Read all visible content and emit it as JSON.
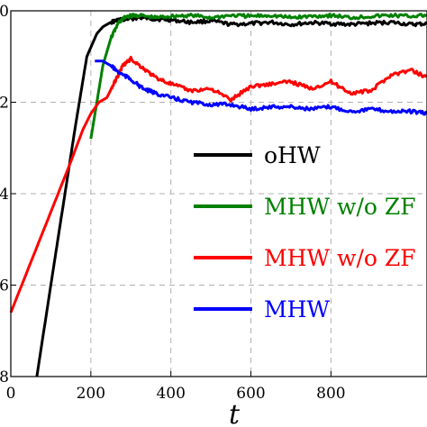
{
  "chart_data": {
    "type": "line",
    "title": "",
    "xlabel": "t",
    "ylabel": "",
    "xlim": [
      0,
      1040
    ],
    "ylim": [
      -8,
      0
    ],
    "x_ticks": [
      0,
      200,
      400,
      600,
      800
    ],
    "x_tick_labels": [
      "0",
      "200",
      "400",
      "600",
      "800"
    ],
    "y_ticks": [
      0,
      -2,
      -4,
      -6,
      -8
    ],
    "y_tick_labels": [
      "0",
      "2",
      "4",
      "6",
      "8"
    ],
    "grid": true,
    "legend_position": "center-right",
    "series": [
      {
        "name": "oHW",
        "color": "#000000",
        "x": [
          65,
          100,
          130,
          160,
          190,
          205,
          215,
          230,
          250,
          270,
          290,
          320,
          360,
          400,
          450,
          500,
          550,
          600,
          650,
          700,
          750,
          800,
          850,
          900,
          950,
          1000,
          1040
        ],
        "y": [
          -8.0,
          -6.0,
          -4.3,
          -2.6,
          -1.0,
          -0.7,
          -0.5,
          -0.35,
          -0.25,
          -0.2,
          -0.18,
          -0.15,
          -0.18,
          -0.2,
          -0.25,
          -0.22,
          -0.3,
          -0.28,
          -0.25,
          -0.3,
          -0.26,
          -0.28,
          -0.3,
          -0.27,
          -0.25,
          -0.3,
          -0.28
        ]
      },
      {
        "name": "MHW w/o ZF",
        "color": "#008000",
        "x": [
          200,
          215,
          230,
          250,
          270,
          290,
          320,
          360,
          400,
          450,
          500,
          550,
          600,
          650,
          700,
          750,
          800,
          850,
          900,
          950,
          1000,
          1040
        ],
        "y": [
          -2.8,
          -2.0,
          -1.2,
          -0.6,
          -0.25,
          -0.12,
          -0.1,
          -0.15,
          -0.12,
          -0.1,
          -0.15,
          -0.1,
          -0.12,
          -0.1,
          -0.15,
          -0.12,
          -0.1,
          -0.15,
          -0.12,
          -0.1,
          -0.12,
          -0.1
        ]
      },
      {
        "name": "MHW w/o ZF",
        "color": "#ff0000",
        "x": [
          0,
          50,
          100,
          150,
          180,
          200,
          220,
          240,
          260,
          280,
          300,
          330,
          360,
          400,
          450,
          500,
          550,
          600,
          650,
          700,
          750,
          800,
          850,
          900,
          950,
          1000,
          1040
        ],
        "y": [
          -6.6,
          -5.5,
          -4.4,
          -3.3,
          -2.6,
          -2.25,
          -2.0,
          -1.9,
          -1.55,
          -1.2,
          -1.05,
          -1.25,
          -1.45,
          -1.6,
          -1.75,
          -1.7,
          -1.95,
          -1.65,
          -1.6,
          -1.55,
          -1.7,
          -1.55,
          -1.8,
          -1.75,
          -1.4,
          -1.3,
          -1.45
        ]
      },
      {
        "name": "MHW",
        "color": "#0000ff",
        "x": [
          210,
          230,
          250,
          270,
          300,
          330,
          360,
          400,
          450,
          500,
          550,
          600,
          650,
          700,
          750,
          800,
          850,
          900,
          950,
          1000,
          1040
        ],
        "y": [
          -1.1,
          -1.1,
          -1.2,
          -1.35,
          -1.5,
          -1.7,
          -1.8,
          -1.9,
          -2.0,
          -2.05,
          -2.05,
          -2.15,
          -2.1,
          -2.1,
          -2.15,
          -2.1,
          -2.2,
          -2.15,
          -2.2,
          -2.2,
          -2.25
        ]
      }
    ]
  }
}
